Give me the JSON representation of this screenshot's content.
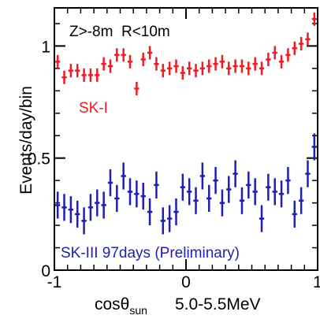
{
  "chart_data": {
    "type": "scatter",
    "title": "",
    "cut_label": "Z>-8m  R<10m",
    "ylabel": "Events/day/bin",
    "xlabel_prefix": "cosθ",
    "xlabel_sub": "sun",
    "xlabel_suffix": "5.0-5.5MeV",
    "xlim": [
      -1,
      1
    ],
    "ylim": [
      0,
      1.17
    ],
    "xticks": [
      -1,
      0,
      1
    ],
    "xtick_labels": [
      "-1",
      "0",
      "1"
    ],
    "yticks": [
      0,
      0.5,
      1
    ],
    "ytick_labels": [
      "0",
      "0.5",
      "1"
    ],
    "grid": false,
    "series": [
      {
        "name": "SK-I",
        "color": "#ee1c24",
        "x": [
          -0.975,
          -0.925,
          -0.875,
          -0.825,
          -0.775,
          -0.725,
          -0.675,
          -0.625,
          -0.575,
          -0.525,
          -0.475,
          -0.425,
          -0.375,
          -0.325,
          -0.275,
          -0.225,
          -0.175,
          -0.125,
          -0.075,
          -0.025,
          0.025,
          0.075,
          0.125,
          0.175,
          0.225,
          0.275,
          0.325,
          0.375,
          0.425,
          0.475,
          0.525,
          0.575,
          0.625,
          0.675,
          0.725,
          0.775,
          0.825,
          0.875,
          0.925,
          0.975
        ],
        "y": [
          0.93,
          0.86,
          0.89,
          0.89,
          0.87,
          0.87,
          0.87,
          0.92,
          0.91,
          0.96,
          0.96,
          0.93,
          0.81,
          0.94,
          0.97,
          0.92,
          0.89,
          0.9,
          0.91,
          0.88,
          0.9,
          0.89,
          0.9,
          0.91,
          0.92,
          0.93,
          0.9,
          0.91,
          0.91,
          0.9,
          0.92,
          0.9,
          0.94,
          0.97,
          0.93,
          0.96,
          0.99,
          1.01,
          1.03,
          1.12
        ],
        "err": [
          0.03,
          0.03,
          0.03,
          0.03,
          0.03,
          0.03,
          0.03,
          0.03,
          0.03,
          0.03,
          0.03,
          0.03,
          0.03,
          0.03,
          0.03,
          0.03,
          0.03,
          0.03,
          0.03,
          0.03,
          0.03,
          0.03,
          0.03,
          0.03,
          0.03,
          0.03,
          0.03,
          0.03,
          0.03,
          0.03,
          0.03,
          0.03,
          0.03,
          0.03,
          0.03,
          0.03,
          0.03,
          0.03,
          0.03,
          0.03
        ]
      },
      {
        "name": "SK-III 97days (Preliminary)",
        "color": "#1f1fb4",
        "x": [
          -0.975,
          -0.925,
          -0.875,
          -0.825,
          -0.775,
          -0.725,
          -0.675,
          -0.625,
          -0.575,
          -0.525,
          -0.475,
          -0.425,
          -0.375,
          -0.325,
          -0.275,
          -0.225,
          -0.175,
          -0.125,
          -0.075,
          -0.025,
          0.025,
          0.075,
          0.125,
          0.175,
          0.225,
          0.275,
          0.325,
          0.375,
          0.425,
          0.475,
          0.525,
          0.575,
          0.625,
          0.675,
          0.725,
          0.775,
          0.825,
          0.875,
          0.925,
          0.975
        ],
        "y": [
          0.29,
          0.28,
          0.27,
          0.25,
          0.22,
          0.28,
          0.3,
          0.29,
          0.39,
          0.32,
          0.42,
          0.35,
          0.34,
          0.33,
          0.26,
          0.38,
          0.22,
          0.23,
          0.26,
          0.37,
          0.35,
          0.31,
          0.42,
          0.32,
          0.4,
          0.3,
          0.36,
          0.43,
          0.31,
          0.38,
          0.35,
          0.23,
          0.37,
          0.35,
          0.34,
          0.4,
          0.25,
          0.31,
          0.43,
          0.55
        ],
        "err": [
          0.06,
          0.06,
          0.06,
          0.06,
          0.06,
          0.06,
          0.06,
          0.06,
          0.06,
          0.06,
          0.06,
          0.06,
          0.06,
          0.06,
          0.06,
          0.06,
          0.06,
          0.06,
          0.06,
          0.06,
          0.06,
          0.06,
          0.06,
          0.06,
          0.06,
          0.06,
          0.06,
          0.06,
          0.06,
          0.06,
          0.06,
          0.06,
          0.06,
          0.06,
          0.06,
          0.06,
          0.06,
          0.06,
          0.06,
          0.06
        ]
      }
    ]
  }
}
